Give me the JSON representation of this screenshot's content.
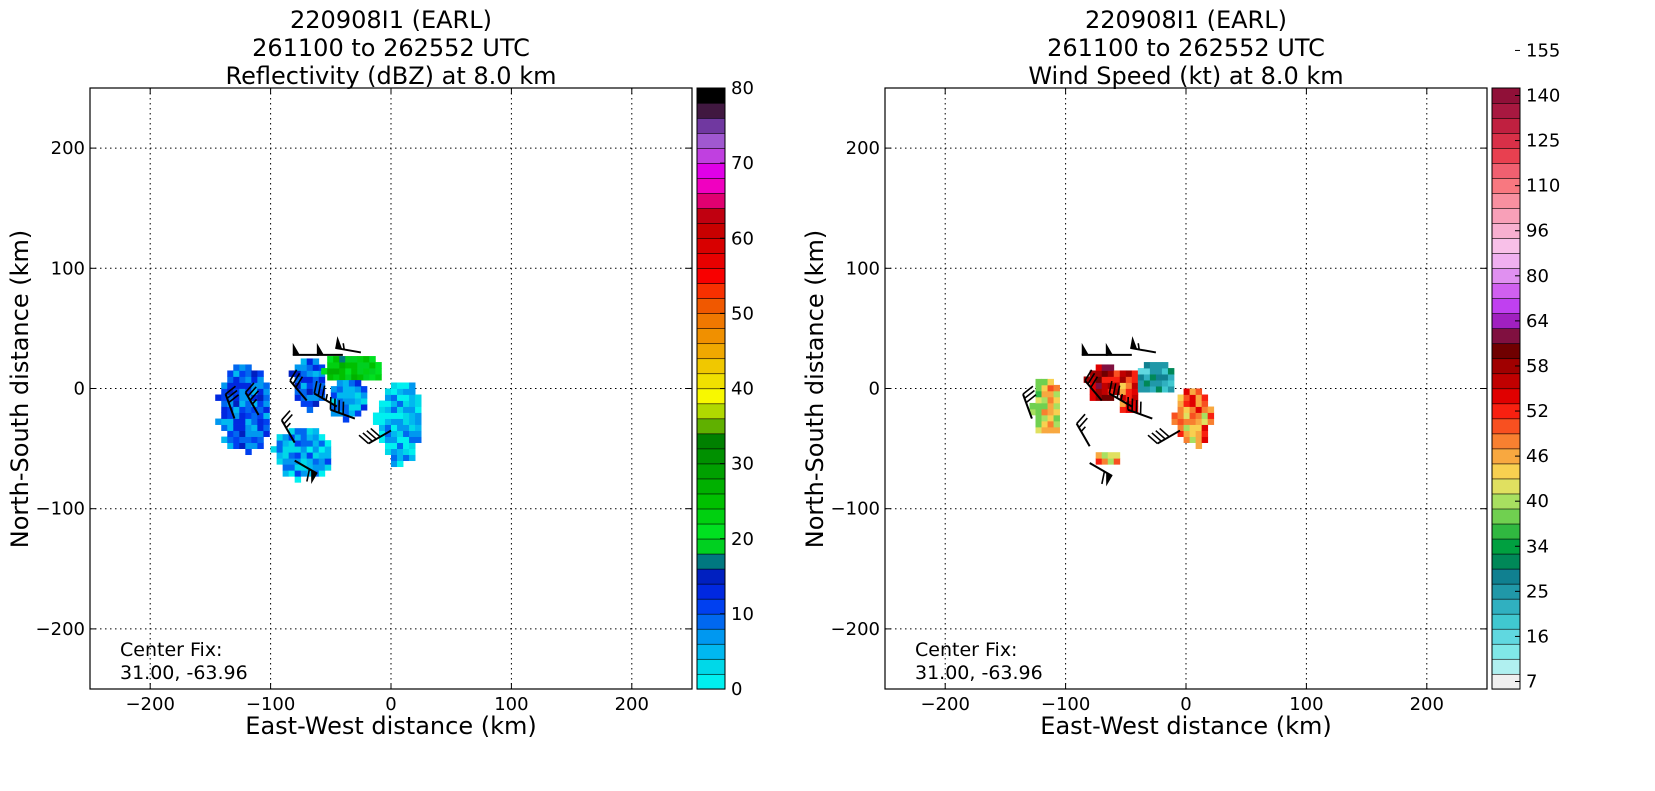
{
  "chart_data": [
    {
      "type": "heatmap",
      "title": [
        "220908I1 (EARL)",
        "261100 to 262552 UTC",
        "Reflectivity (dBZ) at 8.0 km"
      ],
      "xlabel": "East-West distance (km)",
      "ylabel": "North-South distance (km)",
      "xlim": [
        -250,
        250
      ],
      "ylim": [
        -250,
        250
      ],
      "xticks": [
        -200,
        -100,
        0,
        100,
        200
      ],
      "yticks": [
        -200,
        -100,
        0,
        100,
        200
      ],
      "xtick_labels": [
        "−200",
        "−100",
        "0",
        "100",
        "200"
      ],
      "ytick_labels": [
        "−200",
        "−100",
        "0",
        "100",
        "200"
      ],
      "grid": true,
      "annotation": [
        "Center Fix:",
        "31.00, -63.96"
      ],
      "colorbar": {
        "min": 0,
        "max": 80,
        "ticks": [
          0,
          10,
          20,
          30,
          40,
          50,
          60,
          70,
          80
        ],
        "colors": [
          "#00f0f0",
          "#00d8e8",
          "#00b8f0",
          "#0098f0",
          "#0068f0",
          "#0040f0",
          "#0028e0",
          "#0020c0",
          "#007880",
          "#00d020",
          "#00e020",
          "#00d010",
          "#00c000",
          "#00b000",
          "#00a000",
          "#009000",
          "#008000",
          "#60b000",
          "#b0d800",
          "#f8f800",
          "#f0e000",
          "#f0c800",
          "#f0a800",
          "#f09000",
          "#f07800",
          "#f05800",
          "#f83000",
          "#f80000",
          "#e80000",
          "#d80000",
          "#c80000",
          "#c00010",
          "#e00070",
          "#f000c0",
          "#e000e8",
          "#c040e0",
          "#a058d0",
          "#7038a0",
          "#401840",
          "#000000"
        ]
      },
      "blobs": [
        {
          "x": [
            -146,
            -102
          ],
          "y": [
            -55,
            18
          ],
          "dbz": 10
        },
        {
          "x": [
            -85,
            -55
          ],
          "y": [
            -20,
            25
          ],
          "dbz": 10
        },
        {
          "x": [
            -58,
            -10
          ],
          "y": [
            2,
            27
          ],
          "dbz": 22
        },
        {
          "x": [
            -55,
            -20
          ],
          "y": [
            -28,
            5
          ],
          "dbz": 8
        },
        {
          "x": [
            -15,
            25
          ],
          "y": [
            -65,
            5
          ],
          "dbz": 4
        },
        {
          "x": [
            -100,
            -50
          ],
          "y": [
            -78,
            -35
          ],
          "dbz": 6
        }
      ],
      "barbs": [
        {
          "x": -60,
          "y": 28,
          "kt": 50,
          "dir": 270
        },
        {
          "x": -40,
          "y": 28,
          "kt": 50,
          "dir": 270
        },
        {
          "x": -25,
          "y": 30,
          "kt": 55,
          "dir": 280
        },
        {
          "x": -130,
          "y": -25,
          "kt": 30,
          "dir": 340
        },
        {
          "x": -110,
          "y": -22,
          "kt": 35,
          "dir": 330
        },
        {
          "x": -70,
          "y": -10,
          "kt": 30,
          "dir": 320
        },
        {
          "x": -45,
          "y": -15,
          "kt": 35,
          "dir": 300
        },
        {
          "x": -30,
          "y": -25,
          "kt": 40,
          "dir": 290
        },
        {
          "x": 0,
          "y": -35,
          "kt": 40,
          "dir": 240
        },
        {
          "x": -80,
          "y": -45,
          "kt": 25,
          "dir": 330
        },
        {
          "x": -80,
          "y": -60,
          "kt": 60,
          "dir": 120
        }
      ]
    },
    {
      "type": "heatmap",
      "title": [
        "220908I1 (EARL)",
        "261100 to 262552 UTC",
        "Wind Speed (kt) at 8.0 km"
      ],
      "xlabel": "East-West distance (km)",
      "ylabel": "North-South distance (km)",
      "xlim": [
        -250,
        250
      ],
      "ylim": [
        -250,
        250
      ],
      "xticks": [
        -200,
        -100,
        0,
        100,
        200
      ],
      "yticks": [
        -200,
        -100,
        0,
        100,
        200
      ],
      "xtick_labels": [
        "−200",
        "−100",
        "0",
        "100",
        "200"
      ],
      "ytick_labels": [
        "−200",
        "−100",
        "0",
        "100",
        "200"
      ],
      "grid": true,
      "annotation": [
        "Center Fix:",
        "31.00, -63.96"
      ],
      "colorbar": {
        "tick_labels": [
          "7",
          "16",
          "25",
          "34",
          "40",
          "46",
          "52",
          "58",
          "64",
          "80",
          "96",
          "110",
          "125",
          "140",
          "155"
        ],
        "colors": [
          "#f0f0f0",
          "#b0f0f0",
          "#80e8e8",
          "#60d8e0",
          "#40c8d0",
          "#30b0c0",
          "#2098a8",
          "#108090",
          "#008858",
          "#00a040",
          "#30b840",
          "#70d050",
          "#a8e060",
          "#e0e060",
          "#f8d050",
          "#f8a840",
          "#f88030",
          "#f85020",
          "#f82010",
          "#e00000",
          "#c00000",
          "#a00000",
          "#700000",
          "#801040",
          "#a020c0",
          "#c040f0",
          "#d060f0",
          "#e090f0",
          "#f0b0f0",
          "#f8c0e8",
          "#f8b0d0",
          "#f8a0b8",
          "#f890a0",
          "#f87880",
          "#f06070",
          "#e84050",
          "#d83048",
          "#c02040",
          "#a81840",
          "#901038"
        ]
      },
      "blobs": [
        {
          "x": [
            -130,
            -105
          ],
          "y": [
            -42,
            8
          ],
          "kt": 44
        },
        {
          "x": [
            -85,
            -55
          ],
          "y": [
            -15,
            18
          ],
          "kt": 58
        },
        {
          "x": [
            -60,
            -40
          ],
          "y": [
            -25,
            15
          ],
          "kt": 52
        },
        {
          "x": [
            -45,
            -10
          ],
          "y": [
            -8,
            20
          ],
          "kt": 25
        },
        {
          "x": [
            -12,
            20
          ],
          "y": [
            -50,
            0
          ],
          "kt": 48
        },
        {
          "x": [
            -80,
            -55
          ],
          "y": [
            -68,
            -55
          ],
          "kt": 46
        }
      ],
      "barbs": [
        {
          "x": -65,
          "y": 28,
          "kt": 50,
          "dir": 270
        },
        {
          "x": -45,
          "y": 28,
          "kt": 50,
          "dir": 270
        },
        {
          "x": -25,
          "y": 30,
          "kt": 55,
          "dir": 280
        },
        {
          "x": -128,
          "y": -25,
          "kt": 30,
          "dir": 340
        },
        {
          "x": -70,
          "y": -10,
          "kt": 30,
          "dir": 320
        },
        {
          "x": -45,
          "y": -15,
          "kt": 35,
          "dir": 300
        },
        {
          "x": -28,
          "y": -25,
          "kt": 40,
          "dir": 290
        },
        {
          "x": -5,
          "y": -35,
          "kt": 40,
          "dir": 240
        },
        {
          "x": -80,
          "y": -48,
          "kt": 25,
          "dir": 330
        },
        {
          "x": -80,
          "y": -62,
          "kt": 60,
          "dir": 120
        }
      ]
    }
  ]
}
